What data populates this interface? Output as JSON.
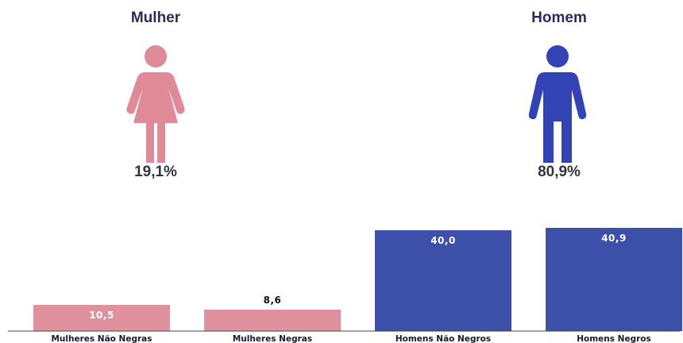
{
  "genders": {
    "female": {
      "label": "Mulher",
      "percent_text": "19,1%",
      "percent": 19.1,
      "color": "#e08a97",
      "icon": "woman-icon"
    },
    "male": {
      "label": "Homem",
      "percent_text": "80,9%",
      "percent": 80.9,
      "color": "#3243b5",
      "icon": "man-icon"
    }
  },
  "chart_data": {
    "type": "bar",
    "categories": [
      "Mulheres Não Negras",
      "Mulheres Negras",
      "Homens Não Negros",
      "Homens Negros"
    ],
    "values": [
      10.5,
      8.6,
      40.0,
      40.9
    ],
    "value_labels": [
      "10,5",
      "8,6",
      "40,0",
      "40,9"
    ],
    "colors": [
      "#e0919d",
      "#e0919d",
      "#3d50a9",
      "#3d50a9"
    ],
    "label_colors": [
      "#ffffff",
      "#111111",
      "#ffffff",
      "#ffffff"
    ],
    "label_inside": [
      true,
      false,
      true,
      true
    ],
    "ylim": [
      0,
      40.9
    ],
    "grid": false
  }
}
